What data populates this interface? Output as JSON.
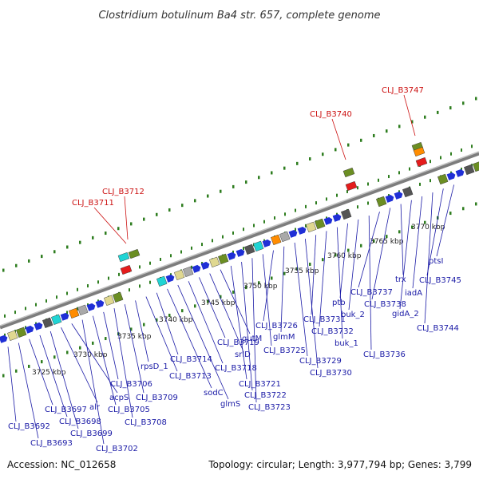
{
  "title": "Clostridium botulinum Ba4 str. 657, complete genome",
  "footer": {
    "accession": "Accession: NC_012658",
    "topology": "Topology: circular; Length: 3,977,794 bp; Genes: 3,799"
  },
  "colors": {
    "backbone": "#8c8c8c",
    "dots": "#2e7d1f",
    "gene_label": "#1a1aa6",
    "highlight_label": "#cc1111",
    "forward_gene": "#1f2fd6",
    "rna_gene": "#e51c1c"
  },
  "tick_labels": [
    "3725 kbp",
    "3730 kbp",
    "3735 kbp",
    "3740 kbp",
    "3745 kbp",
    "3750 kbp",
    "3755 kbp",
    "3760 kbp",
    "3765 kbp",
    "3770 kbp"
  ],
  "top_labels": [
    "CLJ_B3711",
    "CLJ_B3712",
    "CLJ_B3740",
    "CLJ_B3747"
  ],
  "bottom_labels": [
    "CLJ_B3692",
    "CLJ_B3693",
    "CLJ_B3697",
    "CLJ_B3698",
    "CLJ_B3699",
    "alr",
    "acpS",
    "CLJ_B3702",
    "CLJ_B3705",
    "CLJ_B3706",
    "CLJ_B3708",
    "CLJ_B3709",
    "rpsD_1",
    "CLJ_B3713",
    "CLJ_B3714",
    "sodC",
    "glmS",
    "CLJ_B3718",
    "CLJ_B3719",
    "srlD",
    "gutM",
    "CLJ_B3721",
    "CLJ_B3722",
    "CLJ_B3723",
    "CLJ_B3725",
    "CLJ_B3726",
    "glmM",
    "CLJ_B3729",
    "CLJ_B3730",
    "CLJ_B3731",
    "CLJ_B3732",
    "buk_1",
    "ptb",
    "buk_2",
    "CLJ_B3736",
    "CLJ_B3737",
    "CLJ_B3738",
    "trx",
    "gidA_2",
    "iadA",
    "CLJ_B3744",
    "CLJ_B3745",
    "ptsI"
  ]
}
